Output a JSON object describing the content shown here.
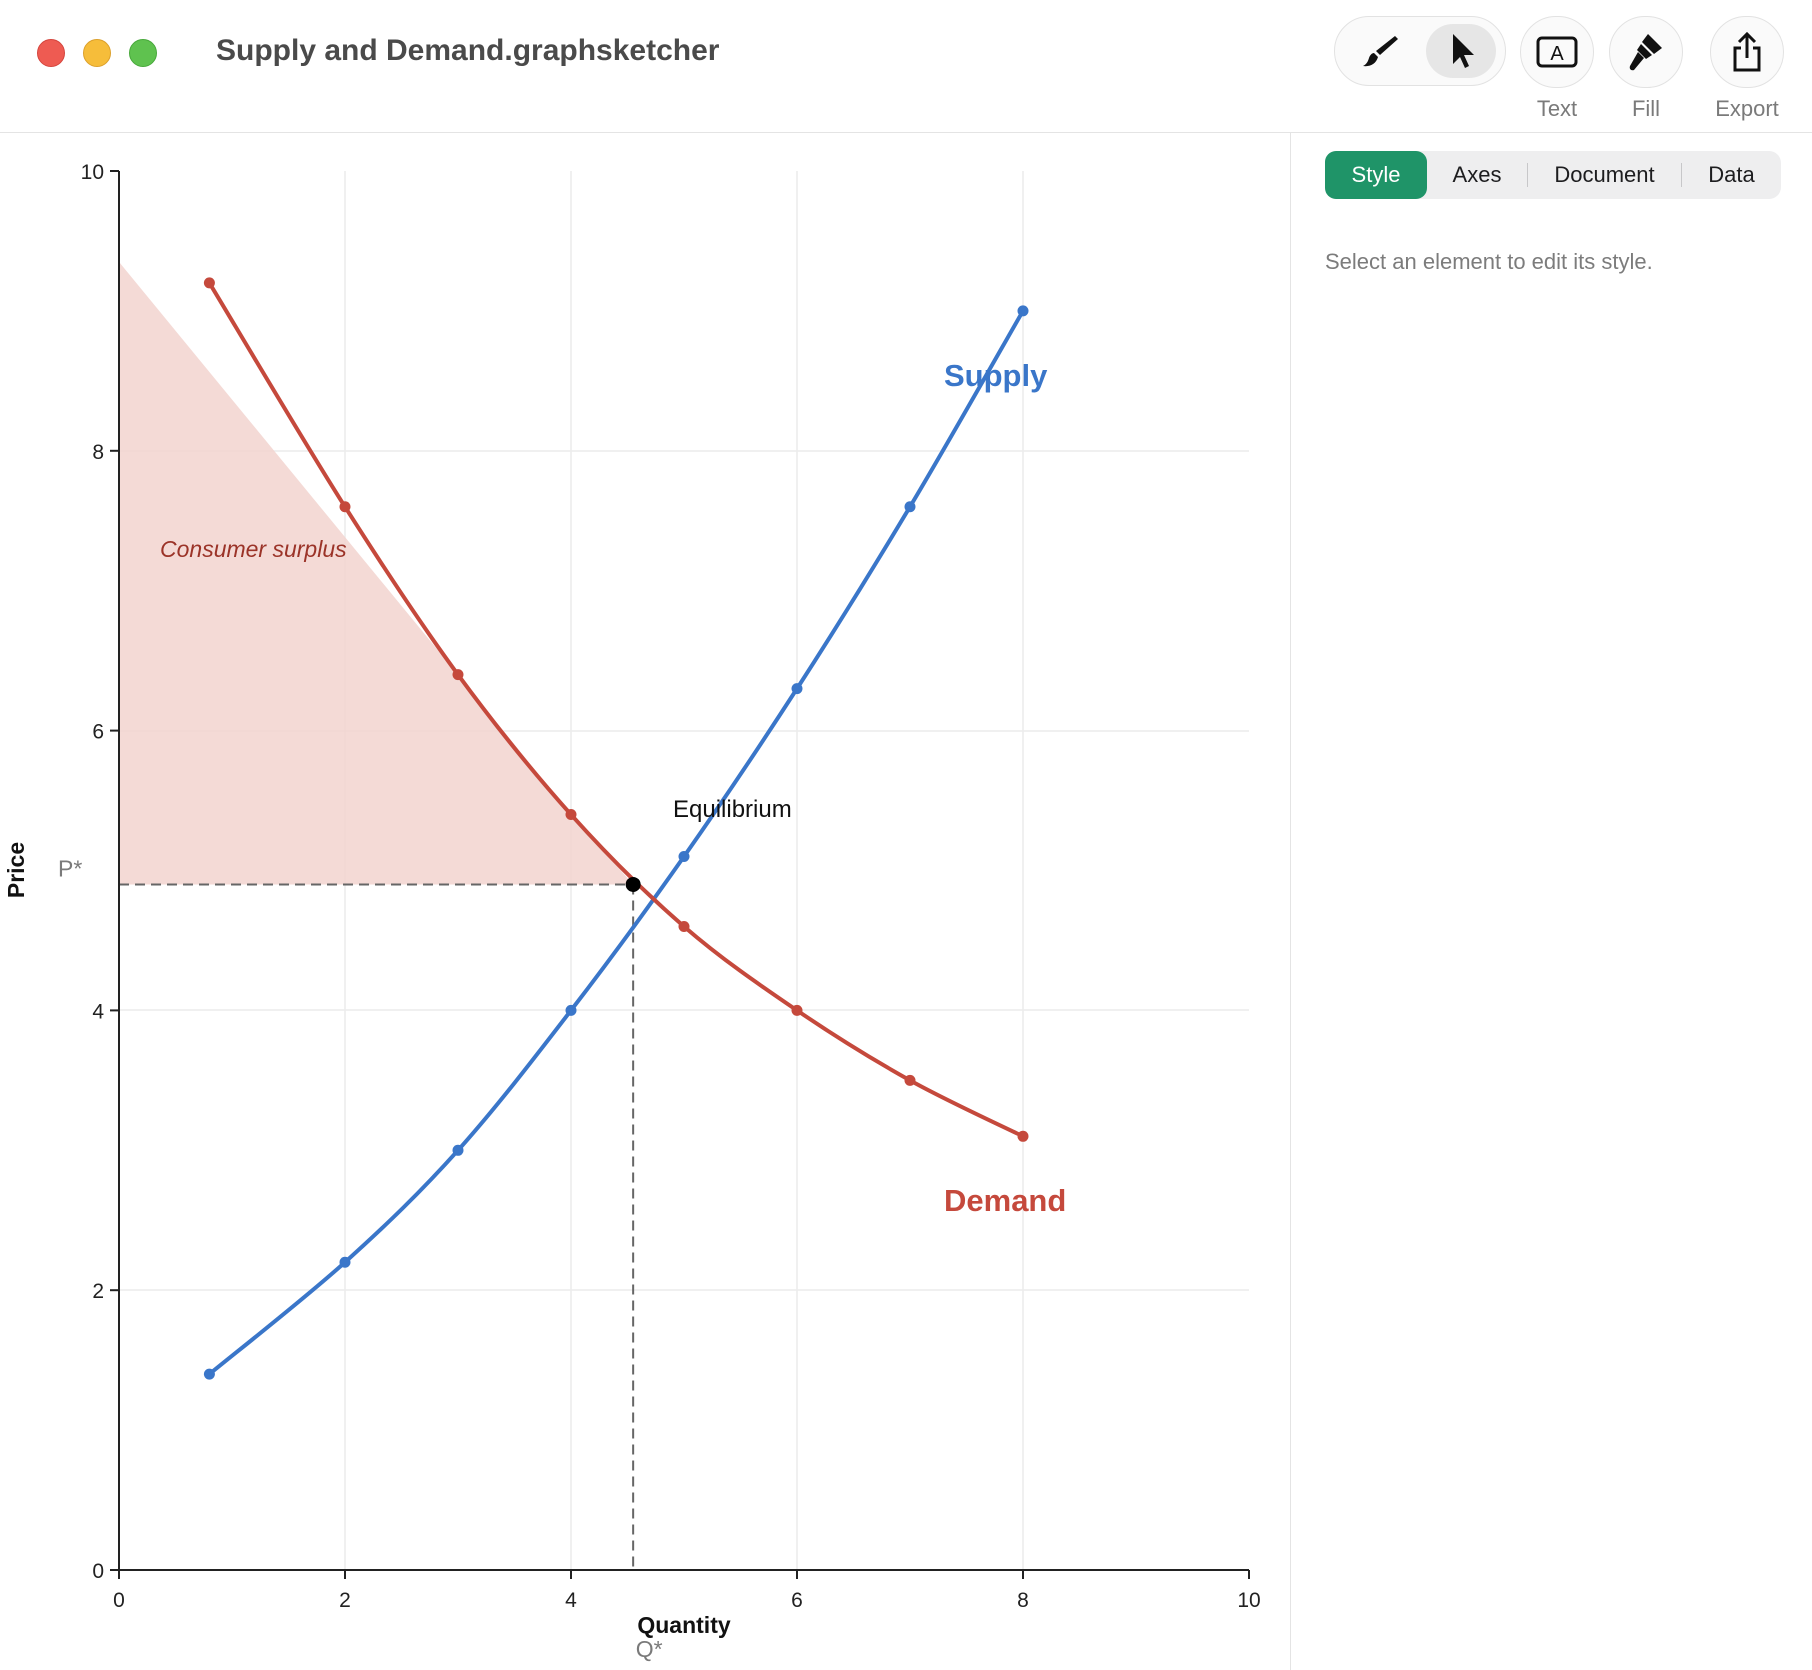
{
  "window": {
    "title": "Supply and Demand.graphsketcher"
  },
  "toolbar": {
    "brush_icon": "paintbrush-icon",
    "pointer_icon": "pointer-arrow-icon",
    "text_label": "Text",
    "fill_label": "Fill",
    "export_label": "Export",
    "text_icon": "text-box-icon",
    "fill_icon": "fill-brush-icon",
    "export_icon": "share-icon"
  },
  "sidebar": {
    "tabs": [
      "Style",
      "Axes",
      "Document",
      "Data"
    ],
    "active_tab": "Style",
    "hint": "Select an element to edit its style."
  },
  "colors": {
    "supply": "#3a76c9",
    "demand": "#c5493c",
    "surplus_fill": "#f2d3cf",
    "surplus_text": "#9b3328",
    "accent": "#1f9468"
  },
  "chart_data": {
    "type": "line",
    "xlabel": "Quantity",
    "ylabel": "Price",
    "xlim": [
      0,
      10
    ],
    "ylim": [
      0,
      10
    ],
    "xticks": [
      "0",
      "2",
      "4",
      "6",
      "8",
      "10"
    ],
    "yticks": [
      "0",
      "2",
      "4",
      "6",
      "8",
      "10"
    ],
    "grid": true,
    "series": [
      {
        "name": "Supply",
        "x": [
          0.8,
          2,
          3,
          4,
          5,
          6,
          7,
          8
        ],
        "y": [
          1.4,
          2.2,
          3.0,
          4.0,
          5.1,
          6.3,
          7.6,
          9.0
        ]
      },
      {
        "name": "Demand",
        "x": [
          0.8,
          2,
          3,
          4,
          5,
          6,
          7,
          8
        ],
        "y": [
          9.2,
          7.6,
          6.4,
          5.4,
          4.6,
          4.0,
          3.5,
          3.1
        ]
      }
    ],
    "equilibrium": {
      "x": 4.55,
      "y": 4.9,
      "label": "Equilibrium"
    },
    "reference_labels": {
      "price": "P*",
      "quantity": "Q*"
    },
    "shaded_region": {
      "label": "Consumer surplus",
      "top_y": 9.35
    }
  }
}
